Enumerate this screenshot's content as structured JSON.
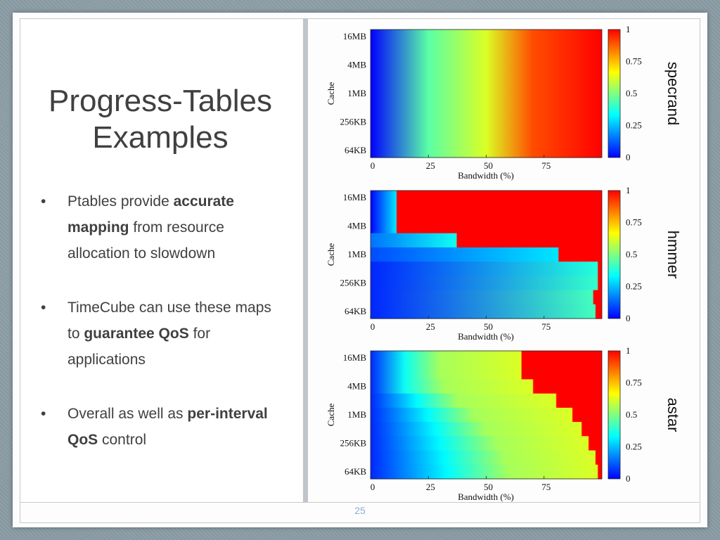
{
  "slide": {
    "title_lines": [
      "Progress-Tables",
      "Examples"
    ],
    "bullets": [
      {
        "segments": [
          {
            "text": "Ptables provide ",
            "bold": false
          },
          {
            "text": "accurate mapping",
            "bold": true
          },
          {
            "text": " from resource allocation to slowdown",
            "bold": false
          }
        ]
      },
      {
        "segments": [
          {
            "text": "TimeCube can use these maps to ",
            "bold": false
          },
          {
            "text": "guarantee QoS",
            "bold": true
          },
          {
            "text": " for applications",
            "bold": false
          }
        ]
      },
      {
        "segments": [
          {
            "text": "Overall as well as ",
            "bold": false
          },
          {
            "text": "per-interval QoS",
            "bold": true
          },
          {
            "text": " control",
            "bold": false
          }
        ]
      }
    ],
    "page_number": "25"
  },
  "colors": {
    "jet": [
      "#0000ff",
      "#0080ff",
      "#00ffff",
      "#80ff80",
      "#ffff00",
      "#ff8000",
      "#ff0000"
    ],
    "text": "#404040",
    "page_number": "#8eaed0"
  },
  "chart_data": [
    {
      "type": "heatmap",
      "title": "specrand",
      "xlabel": "Bandwidth (%)",
      "ylabel": "Cache",
      "xlim": [
        0,
        100
      ],
      "x_ticks": [
        0,
        25,
        50,
        75
      ],
      "y_tick_labels": [
        "16MB",
        "4MB",
        "1MB",
        "256KB",
        "64KB"
      ],
      "rows": 9,
      "row_profiles": [
        [
          [
            0,
            0
          ],
          [
            25,
            0.45
          ],
          [
            50,
            0.62
          ],
          [
            70,
            0.9
          ],
          [
            100,
            1
          ]
        ],
        [
          [
            0,
            0
          ],
          [
            25,
            0.45
          ],
          [
            50,
            0.62
          ],
          [
            70,
            0.9
          ],
          [
            100,
            1
          ]
        ],
        [
          [
            0,
            0
          ],
          [
            25,
            0.45
          ],
          [
            50,
            0.62
          ],
          [
            70,
            0.9
          ],
          [
            100,
            1
          ]
        ],
        [
          [
            0,
            0
          ],
          [
            25,
            0.45
          ],
          [
            50,
            0.62
          ],
          [
            70,
            0.9
          ],
          [
            100,
            1
          ]
        ],
        [
          [
            0,
            0
          ],
          [
            25,
            0.45
          ],
          [
            50,
            0.62
          ],
          [
            70,
            0.9
          ],
          [
            100,
            1
          ]
        ],
        [
          [
            0,
            0
          ],
          [
            25,
            0.45
          ],
          [
            50,
            0.62
          ],
          [
            70,
            0.9
          ],
          [
            100,
            1
          ]
        ],
        [
          [
            0,
            0
          ],
          [
            25,
            0.45
          ],
          [
            50,
            0.62
          ],
          [
            70,
            0.9
          ],
          [
            100,
            1
          ]
        ],
        [
          [
            0,
            0
          ],
          [
            25,
            0.45
          ],
          [
            50,
            0.62
          ],
          [
            70,
            0.9
          ],
          [
            100,
            1
          ]
        ],
        [
          [
            0,
            0
          ],
          [
            25,
            0.45
          ],
          [
            50,
            0.62
          ],
          [
            70,
            0.9
          ],
          [
            100,
            1
          ]
        ]
      ],
      "colorbar_ticks": [
        1,
        0.75,
        0.5,
        0.25,
        0
      ],
      "colorbar_labels": [
        "1",
        "0.75",
        "0.5",
        "0.25",
        "0"
      ]
    },
    {
      "type": "heatmap",
      "title": "hmmer",
      "xlabel": "Bandwidth (%)",
      "ylabel": "Cache",
      "xlim": [
        0,
        100
      ],
      "x_ticks": [
        0,
        25,
        50,
        75
      ],
      "y_tick_labels": [
        "16MB",
        "4MB",
        "1MB",
        "256KB",
        "64KB"
      ],
      "rows": 9,
      "row_profiles": [
        [
          [
            0,
            0
          ],
          [
            11,
            0.3
          ],
          [
            11.5,
            1
          ],
          [
            100,
            1
          ]
        ],
        [
          [
            0,
            0
          ],
          [
            11,
            0.3
          ],
          [
            11.5,
            1
          ],
          [
            100,
            1
          ]
        ],
        [
          [
            0,
            0
          ],
          [
            11,
            0.3
          ],
          [
            11.5,
            1
          ],
          [
            100,
            1
          ]
        ],
        [
          [
            0,
            0.15
          ],
          [
            37,
            0.35
          ],
          [
            37.5,
            1
          ],
          [
            100,
            1
          ]
        ],
        [
          [
            0,
            0.1
          ],
          [
            81,
            0.3
          ],
          [
            81.5,
            1
          ],
          [
            100,
            1
          ]
        ],
        [
          [
            0,
            0.05
          ],
          [
            98,
            0.38
          ],
          [
            98.5,
            1
          ],
          [
            100,
            1
          ]
        ],
        [
          [
            0,
            0.05
          ],
          [
            98,
            0.4
          ],
          [
            98.5,
            1
          ],
          [
            100,
            1
          ]
        ],
        [
          [
            0,
            0.05
          ],
          [
            96,
            0.42
          ],
          [
            96.5,
            1
          ],
          [
            100,
            1
          ]
        ],
        [
          [
            0,
            0.05
          ],
          [
            97,
            0.42
          ],
          [
            97.5,
            1
          ],
          [
            100,
            1
          ]
        ]
      ],
      "colorbar_ticks": [
        1,
        0.75,
        0.5,
        0.25,
        0
      ],
      "colorbar_labels": [
        "1",
        "0.75",
        "0.5",
        "0.25",
        "0"
      ]
    },
    {
      "type": "heatmap",
      "title": "astar",
      "xlabel": "Bandwidth (%)",
      "ylabel": "Cache",
      "xlim": [
        0,
        100
      ],
      "x_ticks": [
        0,
        25,
        50,
        75
      ],
      "y_tick_labels": [
        "16MB",
        "4MB",
        "1MB",
        "256KB",
        "64KB"
      ],
      "rows": 9,
      "row_profiles": [
        [
          [
            0,
            0.05
          ],
          [
            15,
            0.35
          ],
          [
            30,
            0.55
          ],
          [
            65,
            0.62
          ],
          [
            65.5,
            1
          ],
          [
            100,
            1
          ]
        ],
        [
          [
            0,
            0.05
          ],
          [
            15,
            0.35
          ],
          [
            30,
            0.55
          ],
          [
            65,
            0.62
          ],
          [
            65.5,
            1
          ],
          [
            100,
            1
          ]
        ],
        [
          [
            0,
            0.05
          ],
          [
            15,
            0.35
          ],
          [
            32,
            0.55
          ],
          [
            70,
            0.62
          ],
          [
            70.5,
            1
          ],
          [
            100,
            1
          ]
        ],
        [
          [
            0,
            0.05
          ],
          [
            20,
            0.33
          ],
          [
            38,
            0.55
          ],
          [
            80,
            0.62
          ],
          [
            80.5,
            1
          ],
          [
            100,
            1
          ]
        ],
        [
          [
            0,
            0.05
          ],
          [
            25,
            0.33
          ],
          [
            45,
            0.55
          ],
          [
            87,
            0.62
          ],
          [
            87.5,
            1
          ],
          [
            100,
            1
          ]
        ],
        [
          [
            0,
            0.05
          ],
          [
            28,
            0.33
          ],
          [
            50,
            0.55
          ],
          [
            91,
            0.62
          ],
          [
            91.5,
            1
          ],
          [
            100,
            1
          ]
        ],
        [
          [
            0,
            0.05
          ],
          [
            30,
            0.33
          ],
          [
            55,
            0.55
          ],
          [
            94,
            0.62
          ],
          [
            94.5,
            1
          ],
          [
            100,
            1
          ]
        ],
        [
          [
            0,
            0.05
          ],
          [
            32,
            0.33
          ],
          [
            58,
            0.55
          ],
          [
            97,
            0.62
          ],
          [
            97.5,
            1
          ],
          [
            100,
            1
          ]
        ],
        [
          [
            0,
            0.05
          ],
          [
            33,
            0.33
          ],
          [
            60,
            0.55
          ],
          [
            98,
            0.62
          ],
          [
            98.5,
            1
          ],
          [
            100,
            1
          ]
        ]
      ],
      "colorbar_ticks": [
        1,
        0.75,
        0.5,
        0.25,
        0
      ],
      "colorbar_labels": [
        "1",
        "0.75",
        "0.5",
        "0.25",
        "0"
      ]
    }
  ]
}
